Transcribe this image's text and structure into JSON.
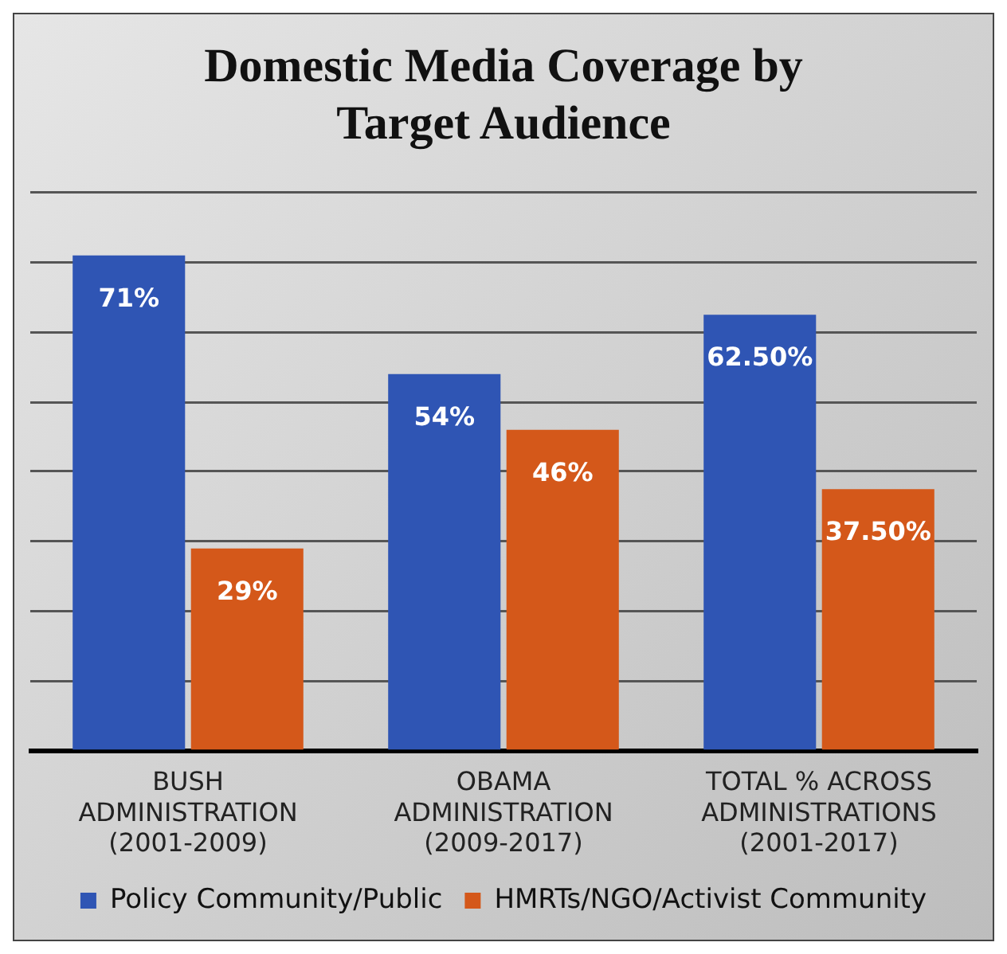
{
  "chart_data": {
    "type": "bar",
    "title": "Domestic Media Coverage by Target Audience",
    "categories": [
      "BUSH\nADMINISTRATION\n(2001-2009)",
      "OBAMA\nADMINISTRATION\n(2009-2017)",
      "TOTAL % ACROSS\nADMINISTRATIONS\n(2001-2017)"
    ],
    "series": [
      {
        "name": "Policy Community/Public",
        "color": "#2f55b4",
        "values": [
          71,
          54,
          62.5
        ],
        "value_labels": [
          "71%",
          "54%",
          "62.50%"
        ]
      },
      {
        "name": "HMRTs/NGO/Activist Community",
        "color": "#d4581a",
        "values": [
          29,
          46,
          37.5
        ],
        "value_labels": [
          "29%",
          "46%",
          "37.50%"
        ]
      }
    ],
    "tick_labels": "x",
    "grid": "y",
    "legend": "bottom"
  }
}
